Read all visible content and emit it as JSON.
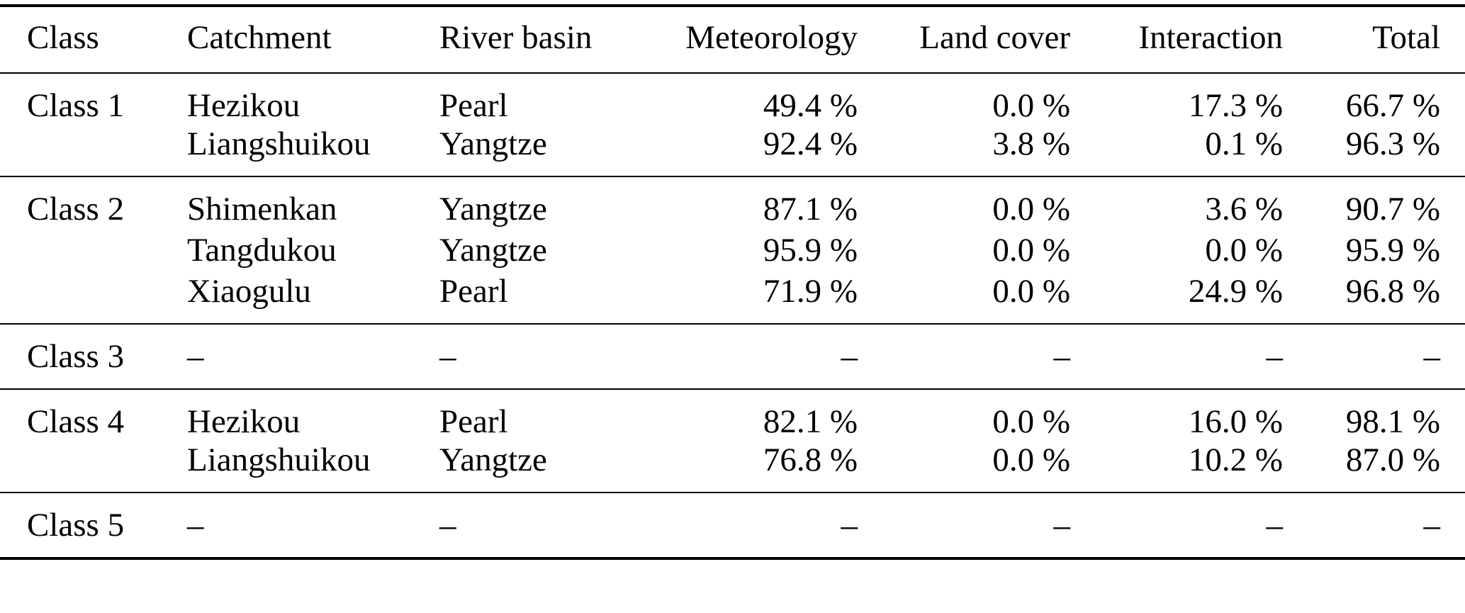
{
  "page": {
    "background": "#ffffff",
    "rule_color": "#000000"
  },
  "table": {
    "headers": {
      "class": "Class",
      "catchment": "Catchment",
      "river_basin": "River basin",
      "meteorology": "Meteorology",
      "land_cover": "Land cover",
      "interaction": "Interaction",
      "total": "Total"
    },
    "groups": [
      {
        "rows": [
          {
            "class": "Class 1",
            "catchment": "Hezikou",
            "river_basin": "Pearl",
            "meteorology": "49.4 %",
            "land_cover": "0.0 %",
            "interaction": "17.3 %",
            "total": "66.7 %"
          },
          {
            "class": "",
            "catchment": "Liangshuikou",
            "river_basin": "Yangtze",
            "meteorology": "92.4 %",
            "land_cover": "3.8 %",
            "interaction": "0.1 %",
            "total": "96.3 %"
          }
        ]
      },
      {
        "rows": [
          {
            "class": "Class 2",
            "catchment": "Shimenkan",
            "river_basin": "Yangtze",
            "meteorology": "87.1 %",
            "land_cover": "0.0 %",
            "interaction": "3.6 %",
            "total": "90.7 %"
          },
          {
            "class": "",
            "catchment": "Tangdukou",
            "river_basin": "Yangtze",
            "meteorology": "95.9 %",
            "land_cover": "0.0 %",
            "interaction": "0.0 %",
            "total": "95.9 %"
          },
          {
            "class": "",
            "catchment": "Xiaogulu",
            "river_basin": "Pearl",
            "meteorology": "71.9 %",
            "land_cover": "0.0 %",
            "interaction": "24.9 %",
            "total": "96.8 %"
          }
        ]
      },
      {
        "rows": [
          {
            "class": "Class 3",
            "catchment": "–",
            "river_basin": "–",
            "meteorology": "–",
            "land_cover": "–",
            "interaction": "–",
            "total": "–"
          }
        ]
      },
      {
        "rows": [
          {
            "class": "Class 4",
            "catchment": "Hezikou",
            "river_basin": "Pearl",
            "meteorology": "82.1 %",
            "land_cover": "0.0 %",
            "interaction": "16.0 %",
            "total": "98.1 %"
          },
          {
            "class": "",
            "catchment": "Liangshuikou",
            "river_basin": "Yangtze",
            "meteorology": "76.8 %",
            "land_cover": "0.0 %",
            "interaction": "10.2 %",
            "total": "87.0 %"
          }
        ]
      },
      {
        "rows": [
          {
            "class": "Class 5",
            "catchment": "–",
            "river_basin": "–",
            "meteorology": "–",
            "land_cover": "–",
            "interaction": "–",
            "total": "–"
          }
        ]
      }
    ]
  }
}
